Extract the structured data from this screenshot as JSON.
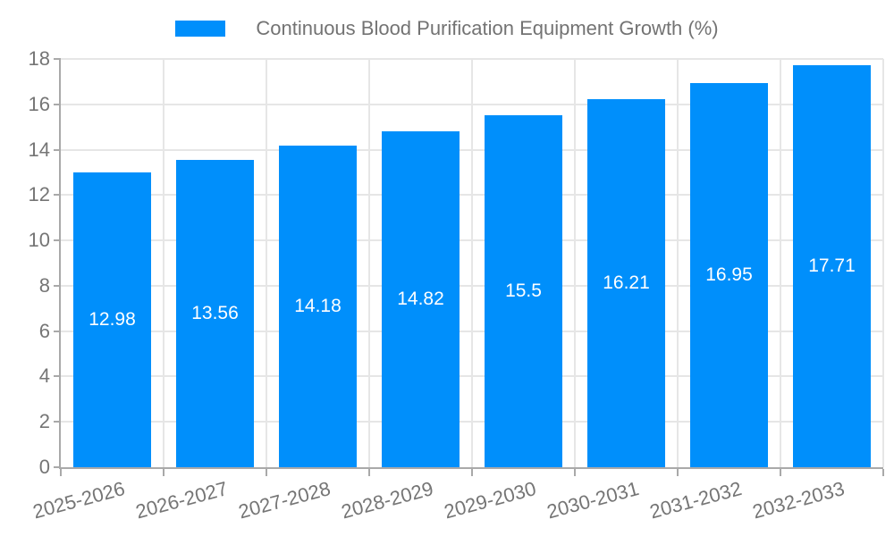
{
  "chart_data": {
    "type": "bar",
    "title": "Continuous Blood Purification Equipment Growth (%)",
    "categories": [
      "2025-2026",
      "2026-2027",
      "2027-2028",
      "2028-2029",
      "2029-2030",
      "2030-2031",
      "2031-2032",
      "2032-2033"
    ],
    "values": [
      12.98,
      13.56,
      14.18,
      14.82,
      15.5,
      16.21,
      16.95,
      17.71
    ],
    "bar_labels": [
      "12.98",
      "13.56",
      "14.18",
      "14.82",
      "15.5",
      "16.21",
      "16.95",
      "17.71"
    ],
    "series_name": "Continuous Blood Purification Equipment Growth (%)",
    "xlabel": "",
    "ylabel": "",
    "ylim": [
      0,
      18
    ],
    "yticks": [
      0,
      2,
      4,
      6,
      8,
      10,
      12,
      14,
      16,
      18
    ],
    "grid": "on",
    "legend_position": "top-center",
    "x_label_rotation_deg": -15,
    "colors": {
      "bar": "#008FFB",
      "bar_label": "#ffffff",
      "grid": "#e6e6e6",
      "axis_line": "#a9a9a9",
      "axis_text": "#757575",
      "title_text": "#737373",
      "background": "#ffffff"
    }
  }
}
